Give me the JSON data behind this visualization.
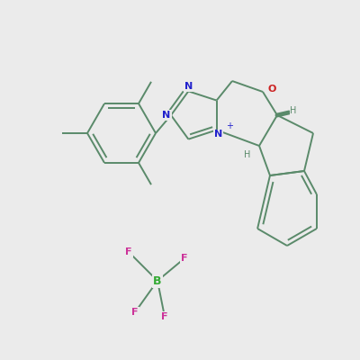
{
  "bg_color": "#ebebeb",
  "bond_color": "#5a8a6a",
  "bond_lw": 1.4,
  "N_color": "#2222cc",
  "O_color": "#cc2222",
  "B_color": "#33aa33",
  "F_color": "#cc3399",
  "figsize": [
    4.0,
    4.0
  ],
  "dpi": 100,
  "xlim": [
    0,
    4.0
  ],
  "ylim": [
    0,
    4.0
  ]
}
